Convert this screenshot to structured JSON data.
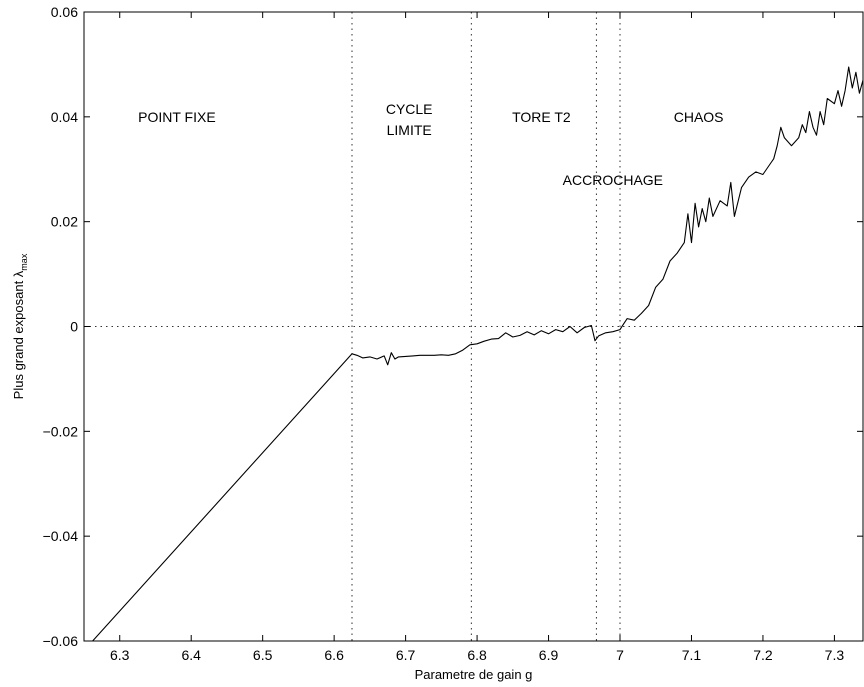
{
  "chart_data": {
    "type": "line",
    "title": "",
    "xlabel": "Parametre de gain g",
    "ylabel": "Plus grand exposant λ",
    "ylabel_sub": "max",
    "xlim": [
      6.25,
      7.34
    ],
    "ylim": [
      -0.06,
      0.06
    ],
    "xticks": [
      6.3,
      6.4,
      6.5,
      6.6,
      6.7,
      6.8,
      6.9,
      7.0,
      7.1,
      7.2,
      7.3
    ],
    "xtick_labels": [
      "6.3",
      "6.4",
      "6.5",
      "6.6",
      "6.7",
      "6.8",
      "6.9",
      "7",
      "7.1",
      "7.2",
      "7.3"
    ],
    "yticks": [
      -0.06,
      -0.04,
      -0.02,
      0,
      0.02,
      0.04,
      0.06
    ],
    "ytick_labels": [
      "−0.06",
      "−0.04",
      "−0.02",
      "0",
      "0.02",
      "0.04",
      "0.06"
    ],
    "grid": false,
    "reference_lines": {
      "vertical_x": [
        6.625,
        6.792,
        6.967,
        7.0
      ],
      "horizontal_y": [
        0
      ]
    },
    "annotations": [
      {
        "text": "POINT FIXE",
        "x": 6.38,
        "y": 0.039
      },
      {
        "text": "CYCLE",
        "x": 6.705,
        "y": 0.0405
      },
      {
        "text": "LIMITE",
        "x": 6.705,
        "y": 0.0365
      },
      {
        "text": "TORE T2",
        "x": 6.89,
        "y": 0.039
      },
      {
        "text": "ACCROCHAGE",
        "x": 6.99,
        "y": 0.027
      },
      {
        "text": "CHAOS",
        "x": 7.11,
        "y": 0.039
      }
    ],
    "series": [
      {
        "color": "#000000",
        "x": [
          6.262,
          6.625,
          6.632,
          6.64,
          6.65,
          6.66,
          6.67,
          6.675,
          6.68,
          6.685,
          6.69,
          6.7,
          6.71,
          6.72,
          6.73,
          6.74,
          6.75,
          6.76,
          6.77,
          6.78,
          6.79,
          6.8,
          6.81,
          6.82,
          6.83,
          6.84,
          6.85,
          6.86,
          6.87,
          6.88,
          6.89,
          6.9,
          6.91,
          6.92,
          6.93,
          6.94,
          6.95,
          6.96,
          6.965,
          6.97,
          6.98,
          6.99,
          7.0,
          7.005,
          7.01,
          7.02,
          7.03,
          7.04,
          7.05,
          7.06,
          7.07,
          7.08,
          7.09,
          7.095,
          7.1,
          7.105,
          7.11,
          7.115,
          7.12,
          7.125,
          7.13,
          7.14,
          7.15,
          7.155,
          7.16,
          7.17,
          7.18,
          7.19,
          7.2,
          7.21,
          7.215,
          7.22,
          7.225,
          7.23,
          7.24,
          7.25,
          7.255,
          7.26,
          7.265,
          7.27,
          7.275,
          7.28,
          7.285,
          7.29,
          7.3,
          7.305,
          7.31,
          7.315,
          7.32,
          7.325,
          7.33,
          7.335,
          7.34
        ],
        "y": [
          -0.06,
          -0.0052,
          -0.0055,
          -0.006,
          -0.0058,
          -0.0062,
          -0.0056,
          -0.0073,
          -0.005,
          -0.0062,
          -0.0058,
          -0.0057,
          -0.0056,
          -0.0055,
          -0.0055,
          -0.0055,
          -0.0054,
          -0.0055,
          -0.0052,
          -0.0045,
          -0.0035,
          -0.0033,
          -0.0028,
          -0.0024,
          -0.0023,
          -0.0012,
          -0.002,
          -0.0017,
          -0.001,
          -0.0016,
          -0.0008,
          -0.0014,
          -0.0006,
          -0.001,
          0.0,
          -0.0012,
          -0.0002,
          0.0002,
          -0.0027,
          -0.0018,
          -0.0012,
          -0.001,
          -0.0006,
          0.0005,
          0.0015,
          0.0012,
          0.0025,
          0.004,
          0.0075,
          0.009,
          0.0125,
          0.014,
          0.016,
          0.0215,
          0.016,
          0.0235,
          0.019,
          0.0225,
          0.02,
          0.0245,
          0.021,
          0.024,
          0.023,
          0.0275,
          0.021,
          0.0265,
          0.0285,
          0.0295,
          0.029,
          0.031,
          0.032,
          0.0345,
          0.038,
          0.036,
          0.0345,
          0.036,
          0.0385,
          0.037,
          0.041,
          0.038,
          0.0365,
          0.041,
          0.0385,
          0.0435,
          0.0425,
          0.045,
          0.042,
          0.045,
          0.0495,
          0.0455,
          0.0485,
          0.0445,
          0.047
        ]
      }
    ]
  }
}
